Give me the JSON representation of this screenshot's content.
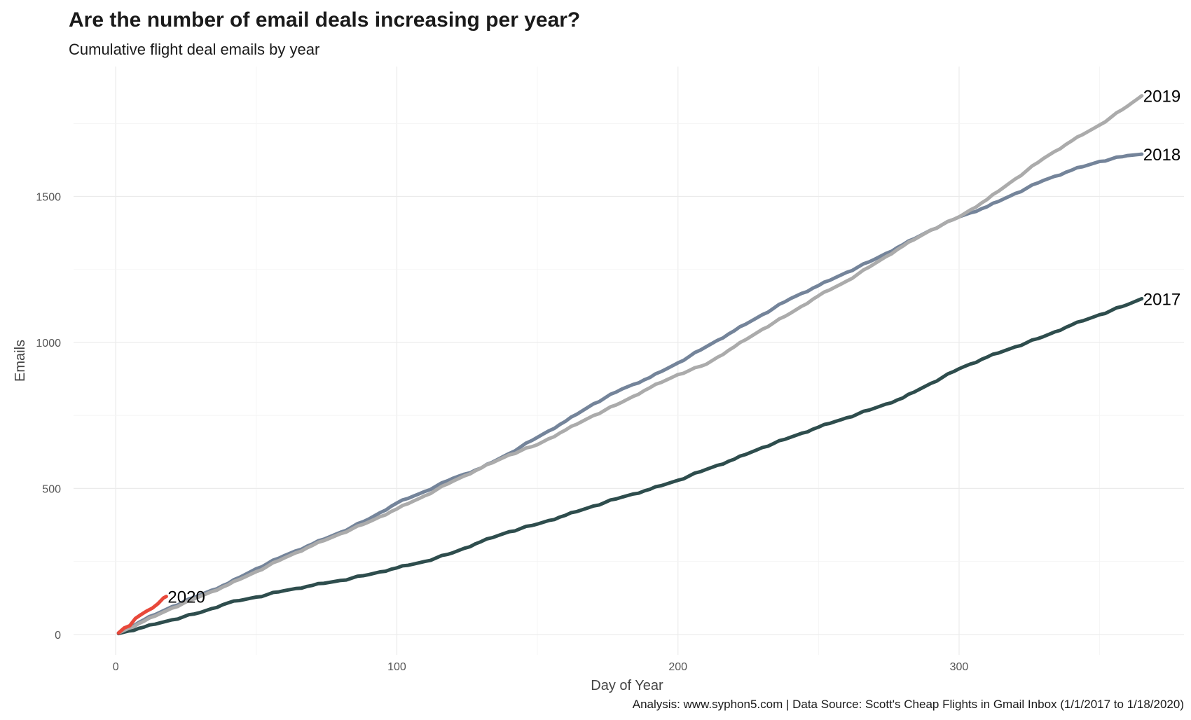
{
  "chart_data": {
    "type": "line",
    "title": "Are the number of email deals increasing per year?",
    "subtitle": "Cumulative flight deal emails by year",
    "caption": "Analysis: www.syphon5.com | Data Source: Scott's Cheap Flights in Gmail Inbox (1/1/2017 to 1/18/2020)",
    "xlabel": "Day of Year",
    "ylabel": "Emails",
    "xlim": [
      -15,
      380
    ],
    "ylim": [
      -70,
      1945
    ],
    "x_ticks": [
      0,
      100,
      200,
      300
    ],
    "y_ticks": [
      0,
      500,
      1000,
      1500
    ],
    "grid": true,
    "legend": "none",
    "series": [
      {
        "name": "2017",
        "color": "#2e4d4d",
        "x": [
          1,
          10,
          20,
          30,
          40,
          50,
          60,
          70,
          80,
          90,
          100,
          110,
          120,
          130,
          140,
          150,
          160,
          170,
          180,
          190,
          200,
          210,
          220,
          230,
          240,
          250,
          260,
          270,
          280,
          290,
          300,
          310,
          320,
          330,
          340,
          350,
          360,
          365
        ],
        "values": [
          3,
          25,
          50,
          75,
          108,
          128,
          150,
          168,
          185,
          205,
          228,
          250,
          280,
          318,
          352,
          378,
          408,
          440,
          470,
          497,
          528,
          565,
          600,
          640,
          675,
          710,
          742,
          775,
          810,
          860,
          910,
          950,
          985,
          1020,
          1060,
          1095,
          1130,
          1150
        ]
      },
      {
        "name": "2018",
        "color": "#74849a",
        "x": [
          1,
          10,
          20,
          30,
          40,
          50,
          60,
          70,
          80,
          90,
          100,
          110,
          120,
          130,
          140,
          150,
          160,
          170,
          180,
          190,
          200,
          210,
          220,
          230,
          240,
          250,
          260,
          270,
          280,
          290,
          300,
          310,
          320,
          330,
          340,
          350,
          360,
          365
        ],
        "values": [
          5,
          50,
          95,
          135,
          175,
          225,
          270,
          310,
          350,
          395,
          450,
          490,
          535,
          570,
          620,
          675,
          730,
          790,
          840,
          880,
          930,
          985,
          1040,
          1095,
          1150,
          1195,
          1240,
          1285,
          1335,
          1385,
          1430,
          1465,
          1510,
          1555,
          1590,
          1620,
          1640,
          1645
        ]
      },
      {
        "name": "2019",
        "color": "#ababab",
        "x": [
          1,
          10,
          20,
          30,
          40,
          50,
          60,
          70,
          80,
          90,
          100,
          110,
          120,
          130,
          140,
          150,
          160,
          170,
          180,
          190,
          200,
          210,
          220,
          230,
          240,
          250,
          260,
          270,
          280,
          290,
          300,
          310,
          320,
          330,
          340,
          350,
          360,
          365
        ],
        "values": [
          5,
          45,
          90,
          130,
          170,
          215,
          262,
          305,
          345,
          385,
          430,
          475,
          525,
          570,
          615,
          650,
          700,
          750,
          795,
          845,
          890,
          925,
          985,
          1045,
          1100,
          1160,
          1210,
          1270,
          1330,
          1385,
          1430,
          1490,
          1560,
          1630,
          1690,
          1745,
          1810,
          1845
        ]
      },
      {
        "name": "2020",
        "color": "#e8483a",
        "x": [
          1,
          3,
          5,
          7,
          9,
          11,
          13,
          15,
          17,
          18
        ],
        "values": [
          5,
          22,
          30,
          55,
          68,
          80,
          90,
          105,
          125,
          130
        ]
      }
    ]
  }
}
